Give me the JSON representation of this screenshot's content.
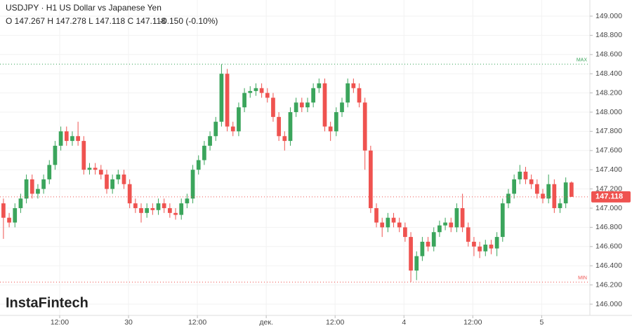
{
  "chart_data": {
    "type": "candlestick",
    "title": "USDJPY · H1 US Dollar vs Japanese Yen",
    "ohlc_text": "O 147.267 H 147.278 L 147.118 C 147.118",
    "change_text": "-0.150 (-0.10%)",
    "watermark": "InstaFintech",
    "up_color": "#3ba55c",
    "down_color": "#ef5350",
    "grid": true,
    "ylim": [
      145.883,
      149.168
    ],
    "xlim": [
      -0.6,
      102.2
    ],
    "yticks": [
      {
        "value": 146.0,
        "label": "146.000"
      },
      {
        "value": 146.2,
        "label": "146.200"
      },
      {
        "value": 146.4,
        "label": "146.400"
      },
      {
        "value": 146.6,
        "label": "146.600"
      },
      {
        "value": 146.8,
        "label": "146.800"
      },
      {
        "value": 147.0,
        "label": "147.000"
      },
      {
        "value": 147.2,
        "label": "147.200"
      },
      {
        "value": 147.4,
        "label": "147.400"
      },
      {
        "value": 147.6,
        "label": "147.600"
      },
      {
        "value": 147.8,
        "label": "147.800"
      },
      {
        "value": 148.0,
        "label": "148.000"
      },
      {
        "value": 148.2,
        "label": "148.200"
      },
      {
        "value": 148.4,
        "label": "148.400"
      },
      {
        "value": 148.6,
        "label": "148.600"
      },
      {
        "value": 148.8,
        "label": "148.800"
      },
      {
        "value": 149.0,
        "label": "149.000"
      }
    ],
    "xticks": [
      {
        "value": 9.8,
        "label": "12:00"
      },
      {
        "value": 21.8,
        "label": "30"
      },
      {
        "value": 33.8,
        "label": "12:00"
      },
      {
        "value": 45.8,
        "label": "дек."
      },
      {
        "value": 57.8,
        "label": "12:00"
      },
      {
        "value": 69.8,
        "label": "4"
      },
      {
        "value": 81.8,
        "label": "12:00"
      },
      {
        "value": 93.8,
        "label": "5"
      }
    ],
    "max_line": {
      "value": 148.5,
      "label": "MAX"
    },
    "min_line": {
      "value": 146.23,
      "label": "MIN"
    },
    "last_price": {
      "value": 147.118,
      "label": "147.118"
    },
    "open": [
      147.05,
      146.9,
      146.85,
      147.0,
      147.1,
      147.3,
      147.15,
      147.2,
      147.3,
      147.45,
      147.65,
      147.8,
      147.7,
      147.75,
      147.7,
      147.4,
      147.42,
      147.4,
      147.35,
      147.2,
      147.3,
      147.35,
      147.25,
      147.05,
      147.0,
      146.95,
      147.0,
      146.98,
      147.05,
      147.0,
      146.95,
      146.93,
      147.05,
      147.1,
      147.4,
      147.5,
      147.65,
      147.75,
      147.9,
      148.4,
      147.85,
      147.8,
      148.05,
      148.2,
      148.22,
      148.25,
      148.2,
      148.15,
      147.95,
      147.75,
      147.7,
      148.0,
      148.1,
      148.05,
      148.1,
      148.25,
      148.3,
      147.85,
      147.8,
      148.0,
      148.1,
      148.3,
      148.25,
      148.1,
      147.6,
      147.0,
      146.85,
      146.8,
      146.9,
      146.85,
      146.8,
      146.7,
      146.35,
      146.5,
      146.65,
      146.6,
      146.75,
      146.82,
      146.85,
      146.8,
      147.0,
      146.8,
      146.65,
      146.6,
      146.55,
      146.62,
      146.58,
      146.7,
      147.05,
      147.15,
      147.3,
      147.38,
      147.3,
      147.25,
      147.15,
      147.1,
      147.25,
      147.0,
      147.05,
      147.267
    ],
    "high": [
      147.1,
      146.95,
      147.05,
      147.15,
      147.35,
      147.35,
      147.25,
      147.35,
      147.5,
      147.7,
      147.85,
      147.85,
      147.8,
      147.9,
      147.75,
      147.47,
      147.47,
      147.45,
      147.4,
      147.35,
      147.4,
      147.4,
      147.3,
      147.1,
      147.05,
      147.05,
      147.05,
      147.1,
      147.1,
      147.05,
      147.0,
      147.1,
      147.15,
      147.45,
      147.55,
      147.7,
      147.8,
      147.95,
      148.5,
      148.45,
      147.9,
      148.1,
      148.25,
      148.27,
      148.3,
      148.3,
      148.25,
      148.2,
      148.0,
      147.8,
      148.05,
      148.15,
      148.15,
      148.15,
      148.3,
      148.35,
      148.35,
      147.9,
      148.05,
      148.15,
      148.35,
      148.35,
      148.3,
      148.15,
      147.65,
      147.05,
      146.9,
      146.95,
      146.95,
      146.9,
      146.85,
      146.75,
      146.55,
      146.7,
      146.7,
      146.8,
      146.87,
      146.9,
      146.9,
      147.05,
      147.15,
      146.85,
      146.7,
      146.65,
      146.67,
      146.67,
      146.75,
      147.1,
      147.2,
      147.35,
      147.45,
      147.43,
      147.35,
      147.3,
      147.2,
      147.35,
      147.3,
      147.1,
      147.32,
      147.278
    ],
    "low": [
      146.68,
      146.8,
      146.8,
      146.95,
      147.05,
      147.1,
      147.1,
      147.15,
      147.25,
      147.4,
      147.6,
      147.65,
      147.65,
      147.65,
      147.35,
      147.35,
      147.35,
      147.3,
      147.15,
      147.15,
      147.25,
      147.2,
      147.0,
      146.95,
      146.85,
      146.9,
      146.93,
      146.93,
      146.95,
      146.9,
      146.88,
      146.88,
      147.0,
      147.05,
      147.35,
      147.45,
      147.6,
      147.7,
      147.85,
      147.8,
      147.75,
      147.75,
      148.0,
      148.15,
      148.17,
      148.15,
      148.1,
      147.9,
      147.7,
      147.6,
      147.65,
      147.95,
      148.0,
      148.0,
      148.05,
      148.2,
      147.8,
      147.7,
      147.75,
      147.95,
      148.05,
      148.2,
      148.05,
      147.4,
      146.95,
      146.8,
      146.7,
      146.75,
      146.8,
      146.75,
      146.65,
      146.23,
      146.25,
      146.45,
      146.55,
      146.55,
      146.7,
      146.77,
      146.75,
      146.75,
      146.75,
      146.6,
      146.5,
      146.48,
      146.5,
      146.52,
      146.5,
      146.65,
      147.0,
      147.1,
      147.25,
      147.25,
      147.2,
      147.1,
      147.05,
      147.05,
      146.95,
      146.95,
      147.0,
      147.118
    ],
    "close": [
      146.9,
      146.85,
      147.0,
      147.1,
      147.3,
      147.15,
      147.2,
      147.3,
      147.45,
      147.65,
      147.8,
      147.7,
      147.75,
      147.7,
      147.4,
      147.42,
      147.4,
      147.35,
      147.2,
      147.3,
      147.35,
      147.25,
      147.05,
      147.0,
      146.95,
      147.0,
      146.98,
      147.05,
      147.0,
      146.95,
      146.93,
      147.05,
      147.1,
      147.4,
      147.5,
      147.65,
      147.75,
      147.9,
      148.4,
      147.85,
      147.8,
      148.05,
      148.2,
      148.22,
      148.25,
      148.2,
      148.15,
      147.95,
      147.75,
      147.7,
      148.0,
      148.1,
      148.05,
      148.1,
      148.25,
      148.3,
      147.85,
      147.8,
      148.0,
      148.1,
      148.3,
      148.25,
      148.1,
      147.6,
      147.0,
      146.85,
      146.8,
      146.9,
      146.85,
      146.8,
      146.7,
      146.35,
      146.5,
      146.65,
      146.6,
      146.75,
      146.82,
      146.85,
      146.8,
      147.0,
      146.8,
      146.65,
      146.6,
      146.55,
      146.62,
      146.58,
      146.7,
      147.05,
      147.15,
      147.3,
      147.38,
      147.3,
      147.25,
      147.15,
      147.1,
      147.25,
      147.0,
      147.05,
      147.268,
      147.118
    ]
  }
}
